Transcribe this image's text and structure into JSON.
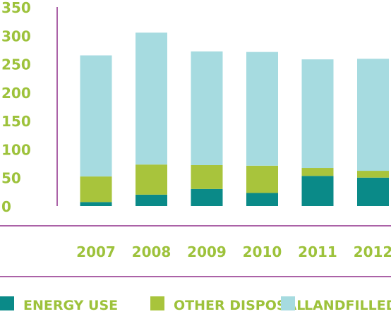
{
  "chart_data": {
    "type": "bar",
    "stacked": true,
    "categories": [
      "2007",
      "2008",
      "2009",
      "2010",
      "2011",
      "2012"
    ],
    "yticks": [
      "0",
      "50",
      "100",
      "150",
      "200",
      "250",
      "300",
      "350"
    ],
    "ylim": [
      0,
      350
    ],
    "series": [
      {
        "name": "ENERGY USE",
        "color": "#0a8a88",
        "values": [
          7,
          20,
          30,
          23,
          53,
          50
        ]
      },
      {
        "name": "OTHER DISPOSAL",
        "color": "#a8c43c",
        "values": [
          45,
          53,
          42,
          48,
          14,
          12
        ]
      },
      {
        "name": "LANDFILLED",
        "color": "#a6dbe0",
        "values": [
          213,
          232,
          200,
          200,
          191,
          197
        ]
      }
    ],
    "legend_position": "bottom",
    "grid": false
  }
}
